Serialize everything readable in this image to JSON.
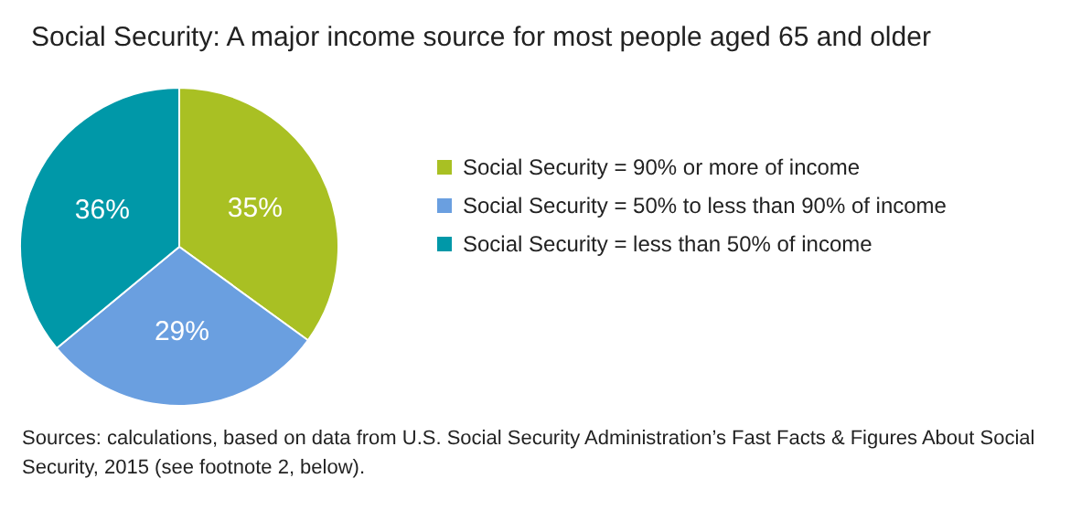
{
  "chart_data": {
    "type": "pie",
    "title": "Social Security: A major income source for most people aged 65 and older",
    "categories": [
      "Social Security = 90% or more of income",
      "Social Security = 50% to less than 90% of income",
      "Social Security = less than 50% of income"
    ],
    "values": [
      35,
      29,
      36
    ],
    "colors": [
      "#a9c023",
      "#6a9fe0",
      "#0098a8"
    ],
    "value_labels": [
      "35%",
      "29%",
      "36%"
    ],
    "legend": "right",
    "annotations": [
      "Sources: calculations, based on data from U.S. Social Security Administration’s Fast Facts & Figures About Social Security, 2015 (see footnote 2, below)."
    ]
  }
}
